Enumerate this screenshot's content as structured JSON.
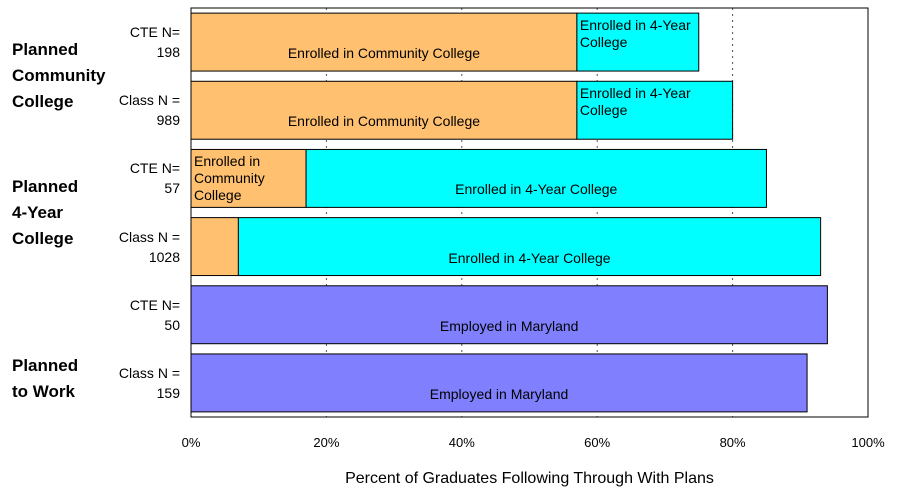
{
  "chart_data": {
    "type": "stacked-barh",
    "x_label": "Percent of Graduates Following Through With Plans",
    "groups": [
      {
        "label": "Planned\nCommunity\nCollege",
        "rows": [
          0,
          1
        ]
      },
      {
        "label": "Planned\n4-Year\nCollege",
        "rows": [
          2,
          3
        ]
      },
      {
        "label": "Planned\nto Work",
        "rows": [
          4,
          5
        ]
      }
    ],
    "categories": [
      "CTE N=\n198",
      "Class N =\n989",
      "CTE N=\n57",
      "Class N =\n1028",
      "CTE N=\n50",
      "Class N =\n159"
    ],
    "series": [
      {
        "name": "Enrolled in Community College",
        "color": "#ffc070",
        "values": [
          57,
          57,
          17,
          7,
          null,
          null
        ]
      },
      {
        "name": "Enrolled in 4-Year College",
        "color": "#00ffff",
        "values": [
          18,
          23,
          68,
          86,
          null,
          null
        ]
      },
      {
        "name": "Employed in Maryland",
        "color": "#8080ff",
        "values": [
          null,
          null,
          null,
          null,
          94,
          91
        ]
      }
    ],
    "xlim": [
      0,
      100
    ],
    "xticks": [
      {
        "value": 0,
        "label": "0%"
      },
      {
        "value": 20,
        "label": "20%"
      },
      {
        "value": 40,
        "label": "40%"
      },
      {
        "value": 60,
        "label": "60%"
      },
      {
        "value": 80,
        "label": "80%"
      },
      {
        "value": 100,
        "label": "100%"
      }
    ],
    "grid": true
  }
}
